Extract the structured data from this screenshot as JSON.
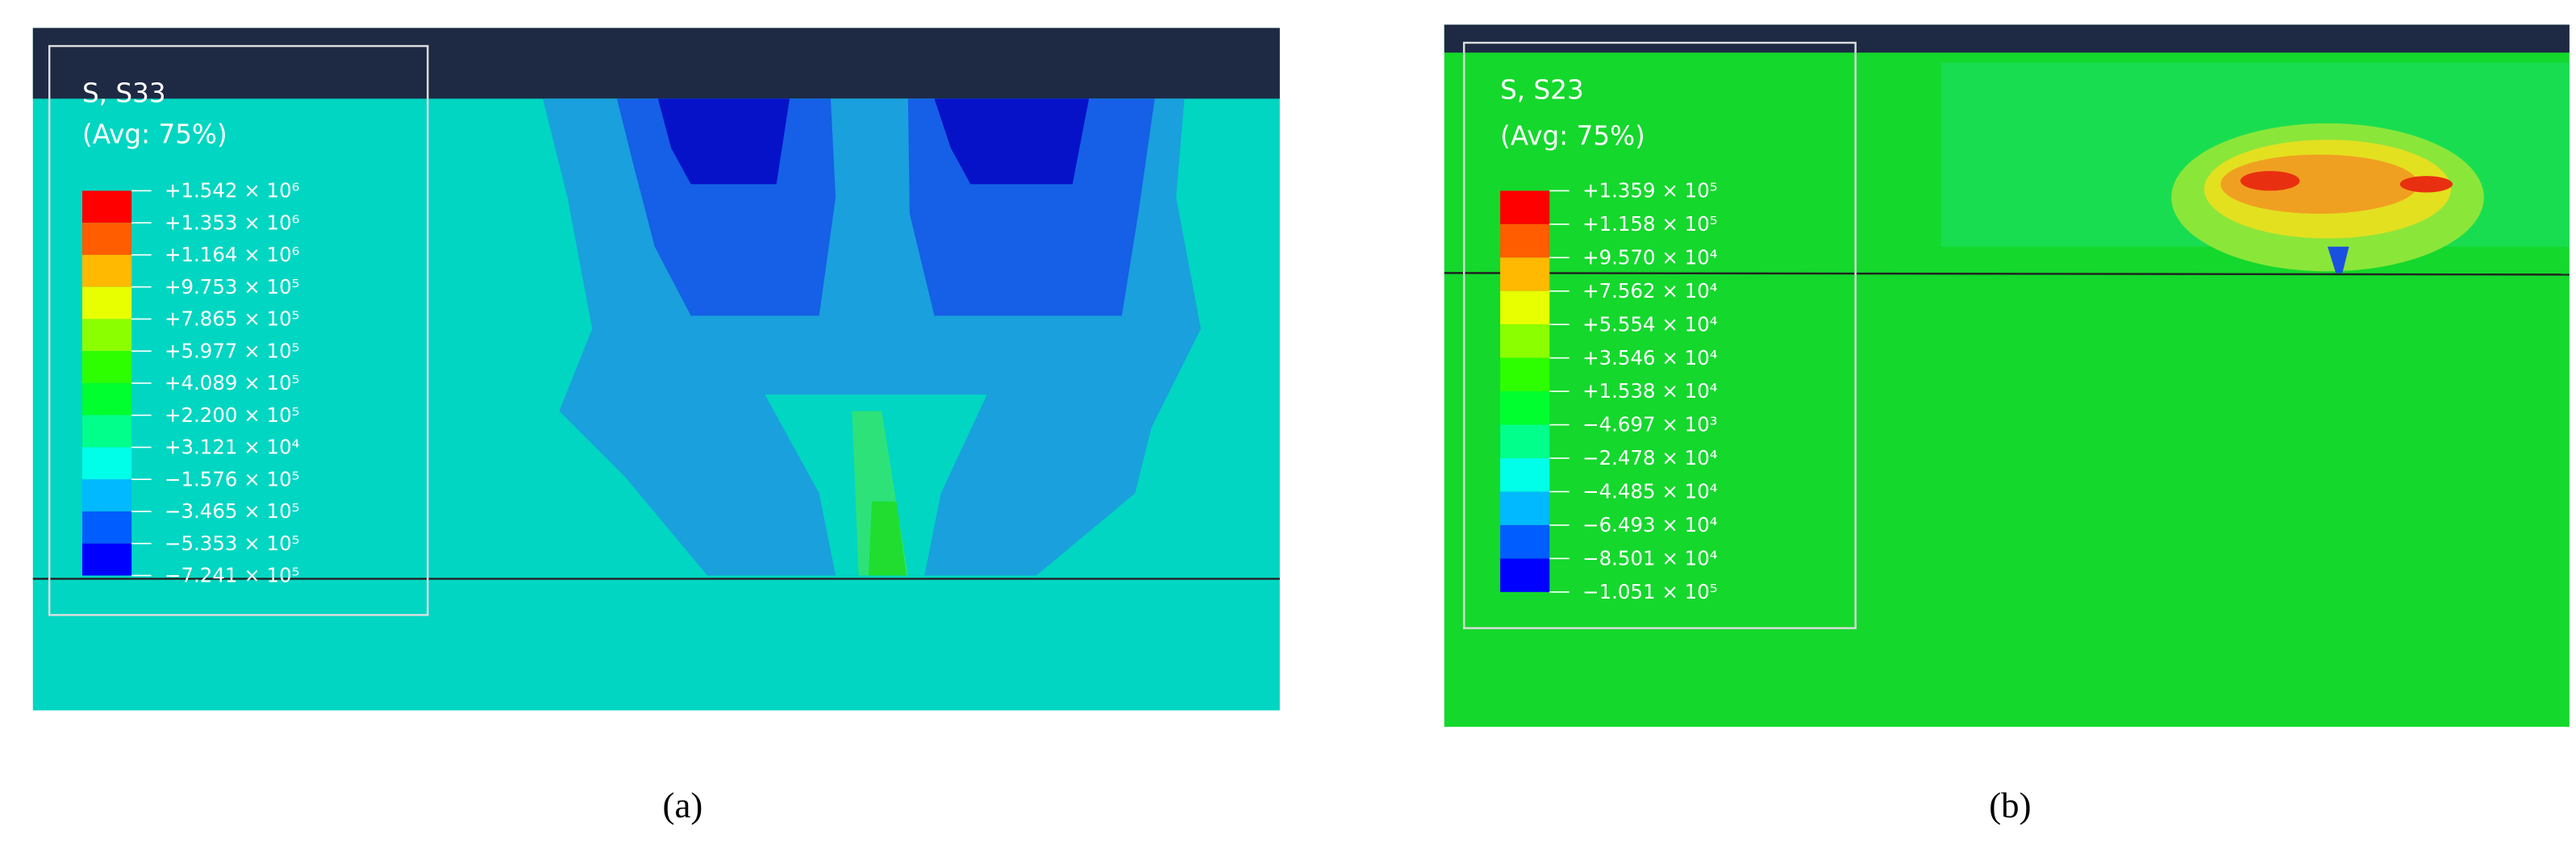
{
  "panels": [
    {
      "caption": "(a)",
      "legend": {
        "title": "S, S33",
        "average": "(Avg: 75%)",
        "labels": [
          "+1.542 × 10⁶",
          "+1.353 × 10⁶",
          "+1.164 × 10⁶",
          "+9.753 × 10⁵",
          "+7.865 × 10⁵",
          "+5.977 × 10⁵",
          "+4.089 × 10⁵",
          "+2.200 × 10⁵",
          "+3.121 × 10⁴",
          "−1.576 × 10⁵",
          "−3.465 × 10⁵",
          "−5.353 × 10⁵",
          "−7.241 × 10⁵"
        ]
      }
    },
    {
      "caption": "(b)",
      "legend": {
        "title": "S, S23",
        "average": "(Avg: 75%)",
        "labels": [
          "+1.359 × 10⁵",
          "+1.158 × 10⁵",
          "+9.570 × 10⁴",
          "+7.562 × 10⁴",
          "+5.554 × 10⁴",
          "+3.546 × 10⁴",
          "+1.538 × 10⁴",
          "−4.697 × 10³",
          "−2.478 × 10⁴",
          "−4.485 × 10⁴",
          "−6.493 × 10⁴",
          "−8.501 × 10⁴",
          "−1.051 × 10⁵"
        ]
      }
    }
  ]
}
